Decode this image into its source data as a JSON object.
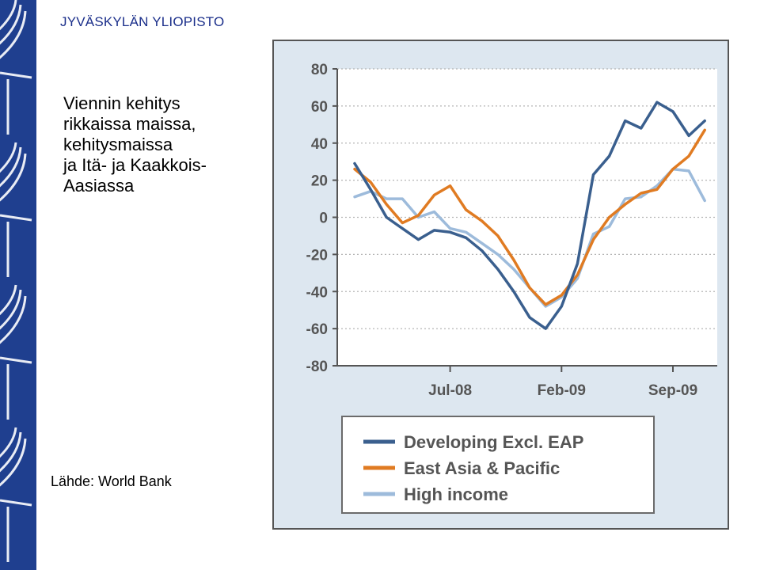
{
  "header": {
    "university": "JYVÄSKYLÄN YLIOPISTO"
  },
  "slide": {
    "title_lines": [
      "Viennin kehitys",
      "rikkaissa maissa,",
      "kehitysmaissa",
      "ja Itä- ja Kaakkois-",
      "Aasiassa"
    ],
    "source": "Lähde: World Bank"
  },
  "colors": {
    "sidebar": "#1f3f8f",
    "panel": "#dde7f0",
    "dev": "#3a5f8e",
    "eap": "#e07b22",
    "high": "#9dbbdb"
  },
  "chart_data": {
    "type": "line",
    "ylim": [
      -80,
      80
    ],
    "yticks": [
      80,
      60,
      40,
      20,
      0,
      -20,
      -40,
      -60,
      -80
    ],
    "xticks": [
      "Jul-08",
      "Feb-09",
      "Sep-09"
    ],
    "xtick_index": [
      6,
      13,
      20
    ],
    "grid": true,
    "legend": "bottom",
    "series": [
      {
        "name": "Developing Excl. EAP",
        "color": "#3a5f8e",
        "values": [
          29,
          15,
          0,
          -6,
          -12,
          -7,
          -8,
          -11,
          -18,
          -28,
          -40,
          -54,
          -60,
          -48,
          -25,
          23,
          33,
          52,
          48,
          62,
          57,
          44,
          52
        ]
      },
      {
        "name": "East Asia & Pacific",
        "color": "#e07b22",
        "values": [
          26,
          19,
          7,
          -3,
          1,
          12,
          17,
          4,
          -2,
          -10,
          -23,
          -38,
          -47,
          -42,
          -31,
          -12,
          0,
          7,
          13,
          15,
          26,
          33,
          47
        ]
      },
      {
        "name": "High income",
        "color": "#9dbbdb",
        "values": [
          11,
          14,
          10,
          10,
          0,
          3,
          -6,
          -8,
          -14,
          -20,
          -28,
          -38,
          -48,
          -43,
          -33,
          -9,
          -5,
          10,
          11,
          17,
          26,
          25,
          9
        ]
      }
    ]
  }
}
